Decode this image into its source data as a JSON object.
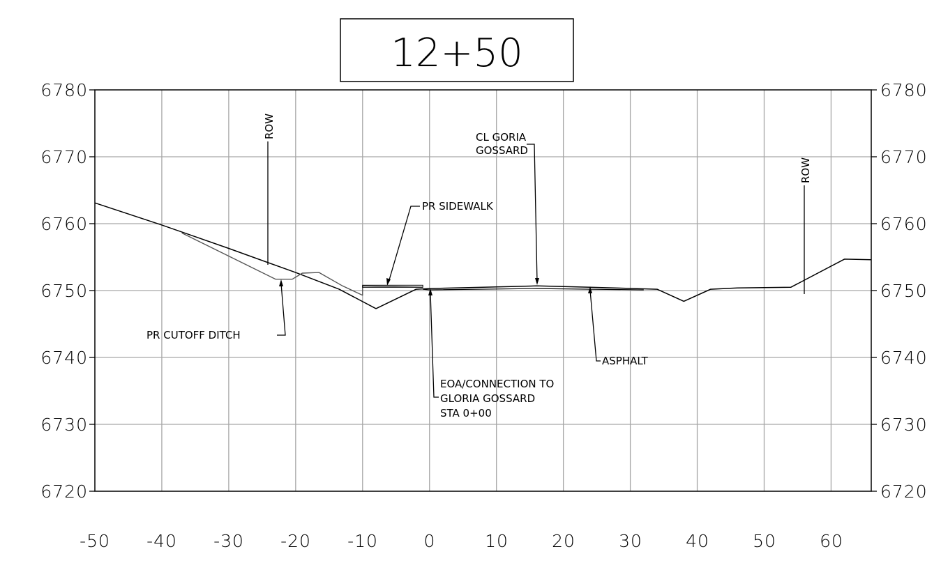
{
  "station": "12+50",
  "x_ticks": [
    "-50",
    "-40",
    "-30",
    "-20",
    "-10",
    "0",
    "10",
    "20",
    "30",
    "40",
    "50",
    "60"
  ],
  "y_ticks": [
    "6720",
    "6730",
    "6740",
    "6750",
    "6760",
    "6770",
    "6780"
  ],
  "labels": {
    "row_left": "ROW",
    "row_right": "ROW",
    "cl_line1": "CL GORIA",
    "cl_line2": "GOSSARD",
    "sidewalk": "PR SIDEWALK",
    "ditch": "PR CUTOFF DITCH",
    "asphalt": "ASPHALT",
    "eoa_line1": "EOA/CONNECTION TO",
    "eoa_line2": "GLORIA GOSSARD",
    "eoa_line3": "STA 0+00"
  },
  "chart_data": {
    "type": "line",
    "xlim": [
      -50,
      66
    ],
    "ylim": [
      6720,
      6780
    ],
    "grid": true,
    "series": [
      {
        "points": [
          [
            -50,
            6763.1
          ],
          [
            -40,
            6759.8
          ],
          [
            -30,
            6756.3
          ],
          [
            -20,
            6752.7
          ],
          [
            -13.5,
            6750.2
          ],
          [
            -8,
            6747.3
          ],
          [
            -2,
            6750.2
          ],
          [
            0,
            6750.3
          ],
          [
            8,
            6750.5
          ],
          [
            16,
            6750.7
          ],
          [
            24,
            6750.5
          ],
          [
            34,
            6750.2
          ],
          [
            38,
            6748.4
          ],
          [
            42,
            6750.2
          ],
          [
            46,
            6750.4
          ],
          [
            54,
            6750.5
          ],
          [
            62,
            6754.7
          ],
          [
            66,
            6754.6
          ]
        ]
      },
      {
        "points": [
          [
            -37,
            6758.6
          ],
          [
            -23,
            6751.7
          ],
          [
            -20.5,
            6751.7
          ],
          [
            -19,
            6752.6
          ],
          [
            -16.5,
            6752.7
          ],
          [
            -13,
            6750.7
          ],
          [
            -10,
            6749.3
          ],
          [
            -10,
            6750.7
          ],
          [
            -1,
            6750.5
          ]
        ]
      },
      {
        "points": [
          [
            -1,
            6750.2
          ],
          [
            0,
            6750.1
          ],
          [
            16,
            6750.3
          ],
          [
            32,
            6750.1
          ]
        ]
      }
    ]
  }
}
